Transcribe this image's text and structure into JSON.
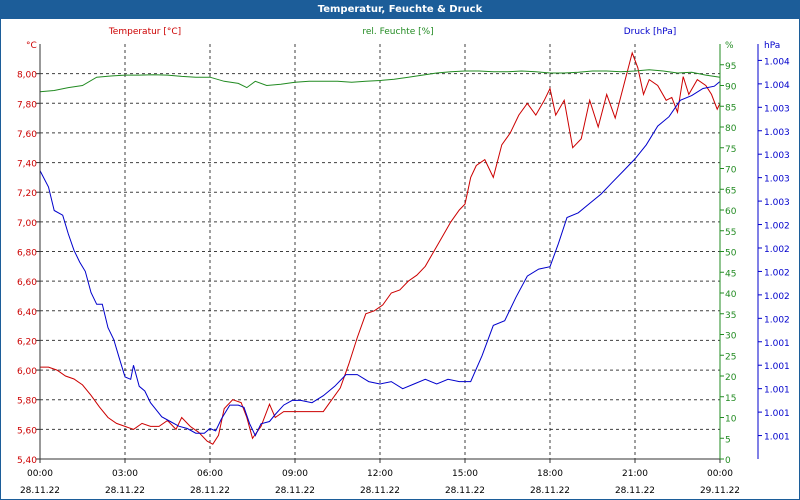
{
  "window": {
    "title": "Temperatur, Feuchte & Druck"
  },
  "colors": {
    "temp": "#cc0000",
    "humidity": "#228b22",
    "pressure": "#0000cc",
    "title_bg": "#1c5d99"
  },
  "chart_data": {
    "type": "line",
    "title": "Temperatur, Feuchte & Druck",
    "legend": [
      "Temperatur [°C]",
      "rel. Feuchte [%]",
      "Druck [hPa]"
    ],
    "x_hours": [
      0,
      3,
      6,
      9,
      12,
      15,
      18,
      21,
      24
    ],
    "x_tick_times": [
      "00:00",
      "03:00",
      "06:00",
      "09:00",
      "12:00",
      "15:00",
      "18:00",
      "21:00",
      "00:00"
    ],
    "x_tick_dates": [
      "28.11.22",
      "28.11.22",
      "28.11.22",
      "28.11.22",
      "28.11.22",
      "28.11.22",
      "28.11.22",
      "28.11.22",
      "29.11.22"
    ],
    "axes": {
      "temp": {
        "unit": "°C",
        "min": 5.4,
        "max": 8.2,
        "ticks": [
          "8,00",
          "7,80",
          "7,60",
          "7,40",
          "7,20",
          "7,00",
          "6,80",
          "6,60",
          "6,40",
          "6,20",
          "6,00",
          "5,80",
          "5,60",
          "5,40"
        ],
        "tick_values": [
          8.0,
          7.8,
          7.6,
          7.4,
          7.2,
          7.0,
          6.8,
          6.6,
          6.4,
          6.2,
          6.0,
          5.8,
          5.6,
          5.4
        ]
      },
      "humidity": {
        "unit": "%",
        "min": 0,
        "max": 100,
        "ticks": [
          "95",
          "90",
          "85",
          "80",
          "75",
          "70",
          "65",
          "60",
          "55",
          "50",
          "45",
          "40",
          "35",
          "30",
          "25",
          "20",
          "15",
          "10",
          "5",
          "0"
        ],
        "tick_values": [
          95,
          90,
          85,
          80,
          75,
          70,
          65,
          60,
          55,
          50,
          45,
          40,
          35,
          30,
          25,
          20,
          15,
          10,
          5,
          0
        ]
      },
      "pressure": {
        "unit": "hPa",
        "min": 0,
        "max": 17.7,
        "ticks": [
          "1.004",
          "1.004",
          "1.003",
          "1.003",
          "1.003",
          "1.003",
          "1.003",
          "1.002",
          "1.002",
          "1.002",
          "1.002",
          "1.002",
          "1.001",
          "1.001",
          "1.001",
          "1.001",
          "1.001"
        ],
        "tick_values": [
          17,
          16,
          15,
          14,
          13,
          12,
          11,
          10,
          9,
          8,
          7,
          6,
          5,
          4,
          3,
          2,
          1
        ]
      }
    },
    "series": [
      {
        "name": "Temperatur [°C]",
        "axis": "temp",
        "points": [
          [
            0,
            6.02
          ],
          [
            0.3,
            6.02
          ],
          [
            0.6,
            6.0
          ],
          [
            0.9,
            5.96
          ],
          [
            1.2,
            5.94
          ],
          [
            1.5,
            5.9
          ],
          [
            1.8,
            5.83
          ],
          [
            2.1,
            5.75
          ],
          [
            2.4,
            5.68
          ],
          [
            2.7,
            5.64
          ],
          [
            3.0,
            5.62
          ],
          [
            3.3,
            5.6
          ],
          [
            3.6,
            5.64
          ],
          [
            3.9,
            5.62
          ],
          [
            4.2,
            5.62
          ],
          [
            4.5,
            5.66
          ],
          [
            4.8,
            5.6
          ],
          [
            5.0,
            5.68
          ],
          [
            5.3,
            5.62
          ],
          [
            5.6,
            5.58
          ],
          [
            5.9,
            5.52
          ],
          [
            6.1,
            5.5
          ],
          [
            6.3,
            5.56
          ],
          [
            6.5,
            5.74
          ],
          [
            6.8,
            5.8
          ],
          [
            7.1,
            5.78
          ],
          [
            7.3,
            5.68
          ],
          [
            7.5,
            5.54
          ],
          [
            7.8,
            5.62
          ],
          [
            8.1,
            5.77
          ],
          [
            8.3,
            5.68
          ],
          [
            8.6,
            5.72
          ],
          [
            9.0,
            5.72
          ],
          [
            9.5,
            5.72
          ],
          [
            10.0,
            5.72
          ],
          [
            10.3,
            5.8
          ],
          [
            10.6,
            5.88
          ],
          [
            10.9,
            6.04
          ],
          [
            11.2,
            6.22
          ],
          [
            11.5,
            6.38
          ],
          [
            11.8,
            6.4
          ],
          [
            12.1,
            6.44
          ],
          [
            12.4,
            6.52
          ],
          [
            12.7,
            6.54
          ],
          [
            13.0,
            6.6
          ],
          [
            13.3,
            6.64
          ],
          [
            13.6,
            6.7
          ],
          [
            13.9,
            6.8
          ],
          [
            14.2,
            6.9
          ],
          [
            14.5,
            7.0
          ],
          [
            14.8,
            7.08
          ],
          [
            15.0,
            7.12
          ],
          [
            15.2,
            7.3
          ],
          [
            15.4,
            7.38
          ],
          [
            15.7,
            7.42
          ],
          [
            16.0,
            7.3
          ],
          [
            16.3,
            7.52
          ],
          [
            16.6,
            7.6
          ],
          [
            16.9,
            7.72
          ],
          [
            17.2,
            7.8
          ],
          [
            17.5,
            7.72
          ],
          [
            17.8,
            7.82
          ],
          [
            18.0,
            7.9
          ],
          [
            18.2,
            7.72
          ],
          [
            18.5,
            7.82
          ],
          [
            18.8,
            7.5
          ],
          [
            19.1,
            7.56
          ],
          [
            19.4,
            7.82
          ],
          [
            19.7,
            7.64
          ],
          [
            20.0,
            7.86
          ],
          [
            20.3,
            7.7
          ],
          [
            20.6,
            7.92
          ],
          [
            20.9,
            8.14
          ],
          [
            21.1,
            8.04
          ],
          [
            21.3,
            7.86
          ],
          [
            21.5,
            7.96
          ],
          [
            21.8,
            7.92
          ],
          [
            22.1,
            7.82
          ],
          [
            22.3,
            7.84
          ],
          [
            22.5,
            7.74
          ],
          [
            22.7,
            7.98
          ],
          [
            22.9,
            7.86
          ],
          [
            23.2,
            7.96
          ],
          [
            23.5,
            7.92
          ],
          [
            23.7,
            7.86
          ],
          [
            23.9,
            7.76
          ],
          [
            24.0,
            7.8
          ]
        ]
      },
      {
        "name": "rel. Feuchte [%]",
        "axis": "humidity",
        "points": [
          [
            0,
            88.5
          ],
          [
            0.5,
            88.8
          ],
          [
            1.0,
            89.5
          ],
          [
            1.5,
            90
          ],
          [
            2.0,
            92
          ],
          [
            2.5,
            92.3
          ],
          [
            3.0,
            92.5
          ],
          [
            3.5,
            92.5
          ],
          [
            4.0,
            92.6
          ],
          [
            4.5,
            92.5
          ],
          [
            5.0,
            92.2
          ],
          [
            5.5,
            92
          ],
          [
            6.0,
            92
          ],
          [
            6.5,
            91
          ],
          [
            7.0,
            90.5
          ],
          [
            7.3,
            89.5
          ],
          [
            7.6,
            91
          ],
          [
            8.0,
            90
          ],
          [
            8.5,
            90.3
          ],
          [
            9.0,
            90.8
          ],
          [
            9.5,
            91
          ],
          [
            10.0,
            91
          ],
          [
            10.5,
            91
          ],
          [
            11.0,
            90.8
          ],
          [
            11.5,
            91
          ],
          [
            12.0,
            91.2
          ],
          [
            12.5,
            91.5
          ],
          [
            13.0,
            92
          ],
          [
            13.5,
            92.5
          ],
          [
            14.0,
            93
          ],
          [
            14.5,
            93.3
          ],
          [
            15.0,
            93.5
          ],
          [
            15.5,
            93.5
          ],
          [
            16.0,
            93.3
          ],
          [
            16.5,
            93.3
          ],
          [
            17.0,
            93.5
          ],
          [
            17.5,
            93.3
          ],
          [
            18.0,
            93
          ],
          [
            18.5,
            93
          ],
          [
            19.0,
            93.2
          ],
          [
            19.5,
            93.5
          ],
          [
            20.0,
            93.5
          ],
          [
            20.5,
            93.3
          ],
          [
            21.0,
            93.5
          ],
          [
            21.5,
            93.8
          ],
          [
            22.0,
            93.5
          ],
          [
            22.5,
            93
          ],
          [
            23.0,
            93.2
          ],
          [
            23.5,
            92.5
          ],
          [
            24.0,
            92
          ]
        ]
      },
      {
        "name": "Druck [hPa]",
        "axis": "pressure",
        "points": [
          [
            0,
            12.3
          ],
          [
            0.3,
            11.6
          ],
          [
            0.5,
            10.6
          ],
          [
            0.8,
            10.4
          ],
          [
            1.0,
            9.6
          ],
          [
            1.2,
            8.9
          ],
          [
            1.4,
            8.4
          ],
          [
            1.6,
            8.0
          ],
          [
            1.8,
            7.1
          ],
          [
            2.0,
            6.6
          ],
          [
            2.2,
            6.6
          ],
          [
            2.4,
            5.6
          ],
          [
            2.6,
            5.1
          ],
          [
            2.8,
            4.3
          ],
          [
            3.0,
            3.5
          ],
          [
            3.2,
            3.4
          ],
          [
            3.3,
            4.0
          ],
          [
            3.5,
            3.1
          ],
          [
            3.7,
            2.9
          ],
          [
            3.9,
            2.4
          ],
          [
            4.1,
            2.1
          ],
          [
            4.3,
            1.8
          ],
          [
            4.6,
            1.6
          ],
          [
            4.9,
            1.4
          ],
          [
            5.2,
            1.3
          ],
          [
            5.5,
            1.1
          ],
          [
            5.8,
            1.1
          ],
          [
            6.0,
            1.3
          ],
          [
            6.2,
            1.2
          ],
          [
            6.4,
            1.7
          ],
          [
            6.7,
            2.3
          ],
          [
            7.0,
            2.3
          ],
          [
            7.2,
            2.2
          ],
          [
            7.4,
            1.5
          ],
          [
            7.6,
            1.0
          ],
          [
            7.8,
            1.5
          ],
          [
            8.1,
            1.6
          ],
          [
            8.3,
            1.9
          ],
          [
            8.6,
            2.3
          ],
          [
            8.9,
            2.5
          ],
          [
            9.2,
            2.5
          ],
          [
            9.6,
            2.4
          ],
          [
            10.0,
            2.7
          ],
          [
            10.4,
            3.1
          ],
          [
            10.8,
            3.6
          ],
          [
            11.2,
            3.6
          ],
          [
            11.6,
            3.3
          ],
          [
            12.0,
            3.2
          ],
          [
            12.4,
            3.3
          ],
          [
            12.8,
            3.0
          ],
          [
            13.2,
            3.2
          ],
          [
            13.6,
            3.4
          ],
          [
            14.0,
            3.2
          ],
          [
            14.4,
            3.4
          ],
          [
            14.8,
            3.3
          ],
          [
            15.2,
            3.3
          ],
          [
            15.6,
            4.4
          ],
          [
            16.0,
            5.7
          ],
          [
            16.4,
            5.9
          ],
          [
            16.8,
            6.9
          ],
          [
            17.2,
            7.8
          ],
          [
            17.6,
            8.1
          ],
          [
            18.0,
            8.2
          ],
          [
            18.3,
            9.2
          ],
          [
            18.6,
            10.3
          ],
          [
            19.0,
            10.5
          ],
          [
            19.4,
            10.9
          ],
          [
            19.8,
            11.3
          ],
          [
            20.2,
            11.8
          ],
          [
            20.6,
            12.3
          ],
          [
            21.0,
            12.8
          ],
          [
            21.4,
            13.4
          ],
          [
            21.8,
            14.2
          ],
          [
            22.2,
            14.6
          ],
          [
            22.6,
            15.3
          ],
          [
            23.0,
            15.5
          ],
          [
            23.4,
            15.8
          ],
          [
            23.8,
            15.9
          ],
          [
            24.0,
            16.1
          ]
        ]
      }
    ]
  }
}
